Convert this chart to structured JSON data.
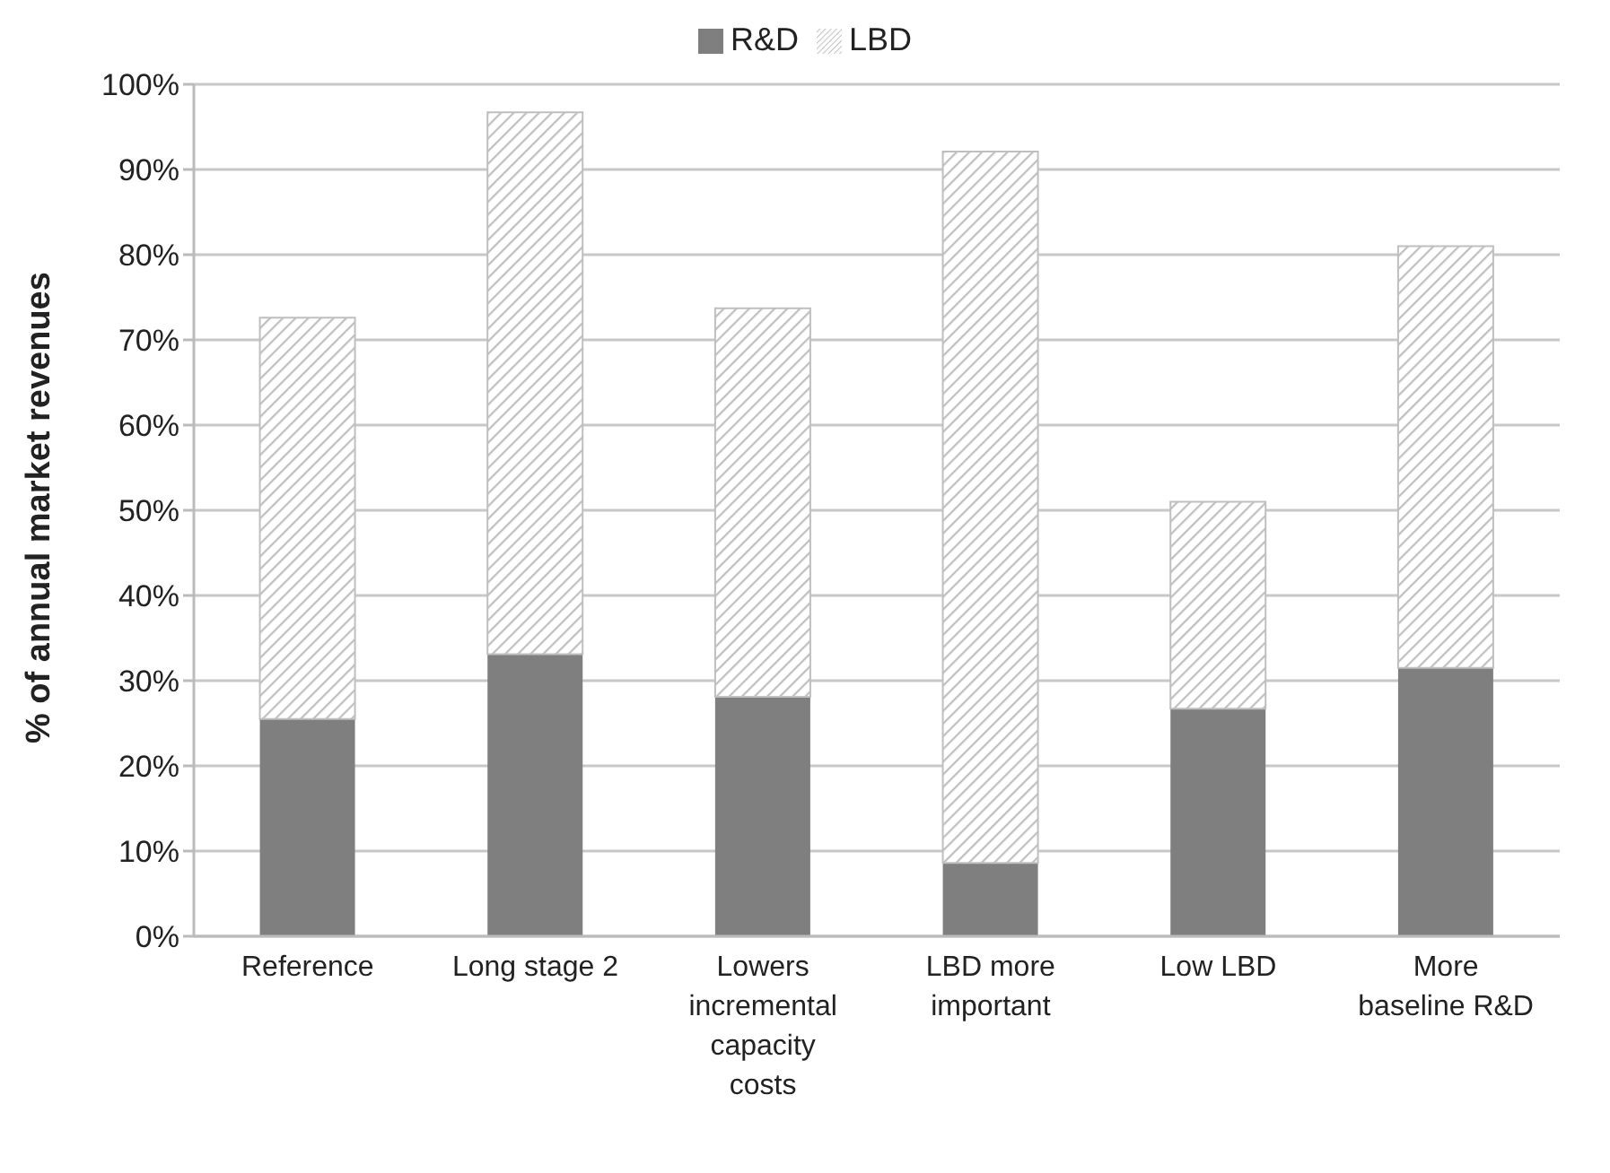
{
  "chart_data": {
    "type": "bar",
    "stacked": true,
    "ylabel": "% of annual market revenues",
    "categories": [
      "Reference",
      "Long stage 2",
      "Lowers incremental capacity costs",
      "LBD more important",
      "Low LBD",
      "More baseline R&D"
    ],
    "series": [
      {
        "name": "R&D",
        "color": "#7f7f7f",
        "values": [
          25.5,
          33.1,
          28.1,
          8.6,
          26.7,
          31.5
        ]
      },
      {
        "name": "LBD",
        "color": "#bfbfbf",
        "values": [
          47.1,
          63.6,
          45.6,
          83.5,
          24.3,
          49.5
        ]
      }
    ],
    "ylim": [
      0,
      100
    ],
    "yticks": [
      {
        "value": 0,
        "label": "0%"
      },
      {
        "value": 10,
        "label": "10%"
      },
      {
        "value": 20,
        "label": "20%"
      },
      {
        "value": 30,
        "label": "30%"
      },
      {
        "value": 40,
        "label": "40%"
      },
      {
        "value": 50,
        "label": "50%"
      },
      {
        "value": 60,
        "label": "60%"
      },
      {
        "value": 70,
        "label": "70%"
      },
      {
        "value": 80,
        "label": "80%"
      },
      {
        "value": 90,
        "label": "90%"
      },
      {
        "value": 100,
        "label": "100%"
      }
    ],
    "grid": "y",
    "legend": "top"
  }
}
